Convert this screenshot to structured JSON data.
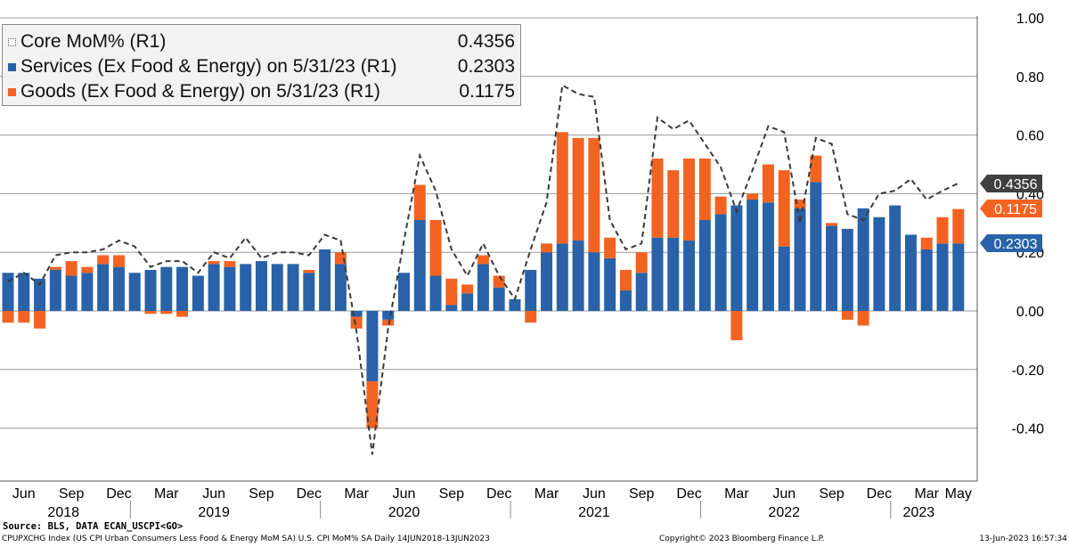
{
  "chart_data": {
    "type": "bar",
    "stacked": true,
    "title": "",
    "xlabel": "",
    "ylabel": "",
    "ylim": [
      -0.6,
      1.0
    ],
    "y_ticks": [
      "1.00",
      "0.80",
      "0.60",
      "0.40",
      "0.20",
      "0.00",
      "-0.20",
      "-0.40"
    ],
    "y_tick_values": [
      1.0,
      0.8,
      0.6,
      0.4,
      0.2,
      0.0,
      -0.2,
      -0.4
    ],
    "y_axis_side": "right",
    "grid": true,
    "categories": [
      "May 2018",
      "Jun 2018",
      "Jul 2018",
      "Aug 2018",
      "Sep 2018",
      "Oct 2018",
      "Nov 2018",
      "Dec 2018",
      "Jan 2019",
      "Feb 2019",
      "Mar 2019",
      "Apr 2019",
      "May 2019",
      "Jun 2019",
      "Jul 2019",
      "Aug 2019",
      "Sep 2019",
      "Oct 2019",
      "Nov 2019",
      "Dec 2019",
      "Jan 2020",
      "Feb 2020",
      "Mar 2020",
      "Apr 2020",
      "May 2020",
      "Jun 2020",
      "Jul 2020",
      "Aug 2020",
      "Sep 2020",
      "Oct 2020",
      "Nov 2020",
      "Dec 2020",
      "Jan 2021",
      "Feb 2021",
      "Mar 2021",
      "Apr 2021",
      "May 2021",
      "Jun 2021",
      "Jul 2021",
      "Aug 2021",
      "Sep 2021",
      "Oct 2021",
      "Nov 2021",
      "Dec 2021",
      "Jan 2022",
      "Feb 2022",
      "Mar 2022",
      "Apr 2022",
      "May 2022",
      "Jun 2022",
      "Jul 2022",
      "Aug 2022",
      "Sep 2022",
      "Oct 2022",
      "Nov 2022",
      "Dec 2022",
      "Jan 2023",
      "Feb 2023",
      "Mar 2023",
      "Apr 2023",
      "May 2023"
    ],
    "series": [
      {
        "name": "Services (Ex Food & Energy) on 5/31/23 (R1)",
        "color": "#2962a8",
        "values": [
          0.13,
          0.13,
          0.11,
          0.14,
          0.12,
          0.13,
          0.16,
          0.15,
          0.13,
          0.14,
          0.15,
          0.15,
          0.12,
          0.16,
          0.15,
          0.16,
          0.17,
          0.16,
          0.16,
          0.13,
          0.21,
          0.16,
          -0.02,
          -0.24,
          -0.03,
          0.13,
          0.31,
          0.12,
          0.02,
          0.06,
          0.16,
          0.08,
          0.04,
          0.14,
          0.2,
          0.23,
          0.24,
          0.2,
          0.18,
          0.07,
          0.13,
          0.25,
          0.25,
          0.24,
          0.31,
          0.33,
          0.36,
          0.38,
          0.37,
          0.22,
          0.35,
          0.44,
          0.29,
          0.28,
          0.35,
          0.32,
          0.36,
          0.26,
          0.21,
          0.23,
          0.2303
        ]
      },
      {
        "name": "Goods (Ex Food & Energy) on 5/31/23 (R1)",
        "color": "#f26322",
        "values": [
          -0.04,
          -0.04,
          -0.06,
          0.01,
          0.05,
          0.02,
          0.03,
          0.04,
          0.0,
          -0.01,
          -0.01,
          -0.02,
          0.0,
          0.01,
          0.02,
          0.0,
          0.0,
          0.0,
          0.0,
          0.01,
          0.0,
          0.04,
          -0.04,
          -0.16,
          -0.02,
          0.0,
          0.12,
          0.19,
          0.09,
          0.03,
          0.03,
          0.04,
          0.0,
          -0.04,
          0.03,
          0.38,
          0.35,
          0.39,
          0.07,
          0.07,
          0.07,
          0.27,
          0.23,
          0.28,
          0.21,
          0.06,
          -0.1,
          0.02,
          0.13,
          0.26,
          0.03,
          0.09,
          0.01,
          -0.03,
          -0.05,
          0.0,
          0.0,
          0.0,
          0.04,
          0.09,
          0.1175
        ]
      },
      {
        "name": "Core MoM% (R1)",
        "type": "line",
        "style": "dashed",
        "color": "#3a3a3a",
        "values": [
          0.1,
          0.13,
          0.09,
          0.19,
          0.2,
          0.2,
          0.21,
          0.24,
          0.22,
          0.15,
          0.17,
          0.17,
          0.13,
          0.2,
          0.18,
          0.25,
          0.18,
          0.2,
          0.2,
          0.19,
          0.26,
          0.24,
          -0.07,
          -0.49,
          -0.06,
          0.24,
          0.53,
          0.41,
          0.21,
          0.12,
          0.23,
          0.12,
          0.04,
          0.21,
          0.37,
          0.77,
          0.74,
          0.73,
          0.31,
          0.21,
          0.23,
          0.66,
          0.62,
          0.65,
          0.57,
          0.49,
          0.34,
          0.48,
          0.63,
          0.61,
          0.3,
          0.59,
          0.57,
          0.33,
          0.31,
          0.4,
          0.41,
          0.45,
          0.38,
          0.41,
          0.4356
        ]
      }
    ],
    "x_month_labels": [
      "Jun",
      "Sep",
      "Dec",
      "Mar",
      "Jun",
      "Sep",
      "Dec",
      "Mar",
      "Jun",
      "Sep",
      "Dec",
      "Mar",
      "Jun",
      "Sep",
      "Dec",
      "Mar",
      "Jun",
      "Sep",
      "Dec",
      "Mar",
      "May"
    ],
    "x_month_index": [
      1,
      4,
      7,
      10,
      13,
      16,
      19,
      22,
      25,
      28,
      31,
      34,
      37,
      40,
      43,
      46,
      49,
      52,
      55,
      58,
      60
    ],
    "x_year_labels": [
      "2018",
      "2019",
      "2020",
      "2021",
      "2022",
      "2023"
    ],
    "x_year_index": [
      3.5,
      13,
      25,
      37,
      49,
      57.5
    ],
    "right_tags": [
      {
        "label": "0.4356",
        "value": 0.4356,
        "color": "#404040"
      },
      {
        "label": "0.1175",
        "value": 0.1175,
        "color": "#f26322"
      },
      {
        "label": "0.2303",
        "value": 0.2303,
        "color": "#2962a8"
      }
    ]
  },
  "legend": {
    "items": [
      {
        "label": "Core MoM% (R1)",
        "value": "0.4356"
      },
      {
        "label": "Services (Ex Food & Energy) on 5/31/23 (R1)",
        "value": "0.2303",
        "color": "#2962a8"
      },
      {
        "label": "Goods (Ex Food & Energy) on 5/31/23 (R1)",
        "value": "0.1175",
        "color": "#f26322"
      }
    ]
  },
  "footer": {
    "source": "Source: BLS, DATA ECAN_USCPI<GO>",
    "description": "CPUPXCHG Index (US CPI Urban Consumers Less Food & Energy MoM SA) U.S. CPI MoM% SA  Daily 14JUN2018-13JUN2023",
    "copyright": "Copyright© 2023 Bloomberg Finance L.P.",
    "timestamp": "13-Jun-2023 16:57:34"
  }
}
